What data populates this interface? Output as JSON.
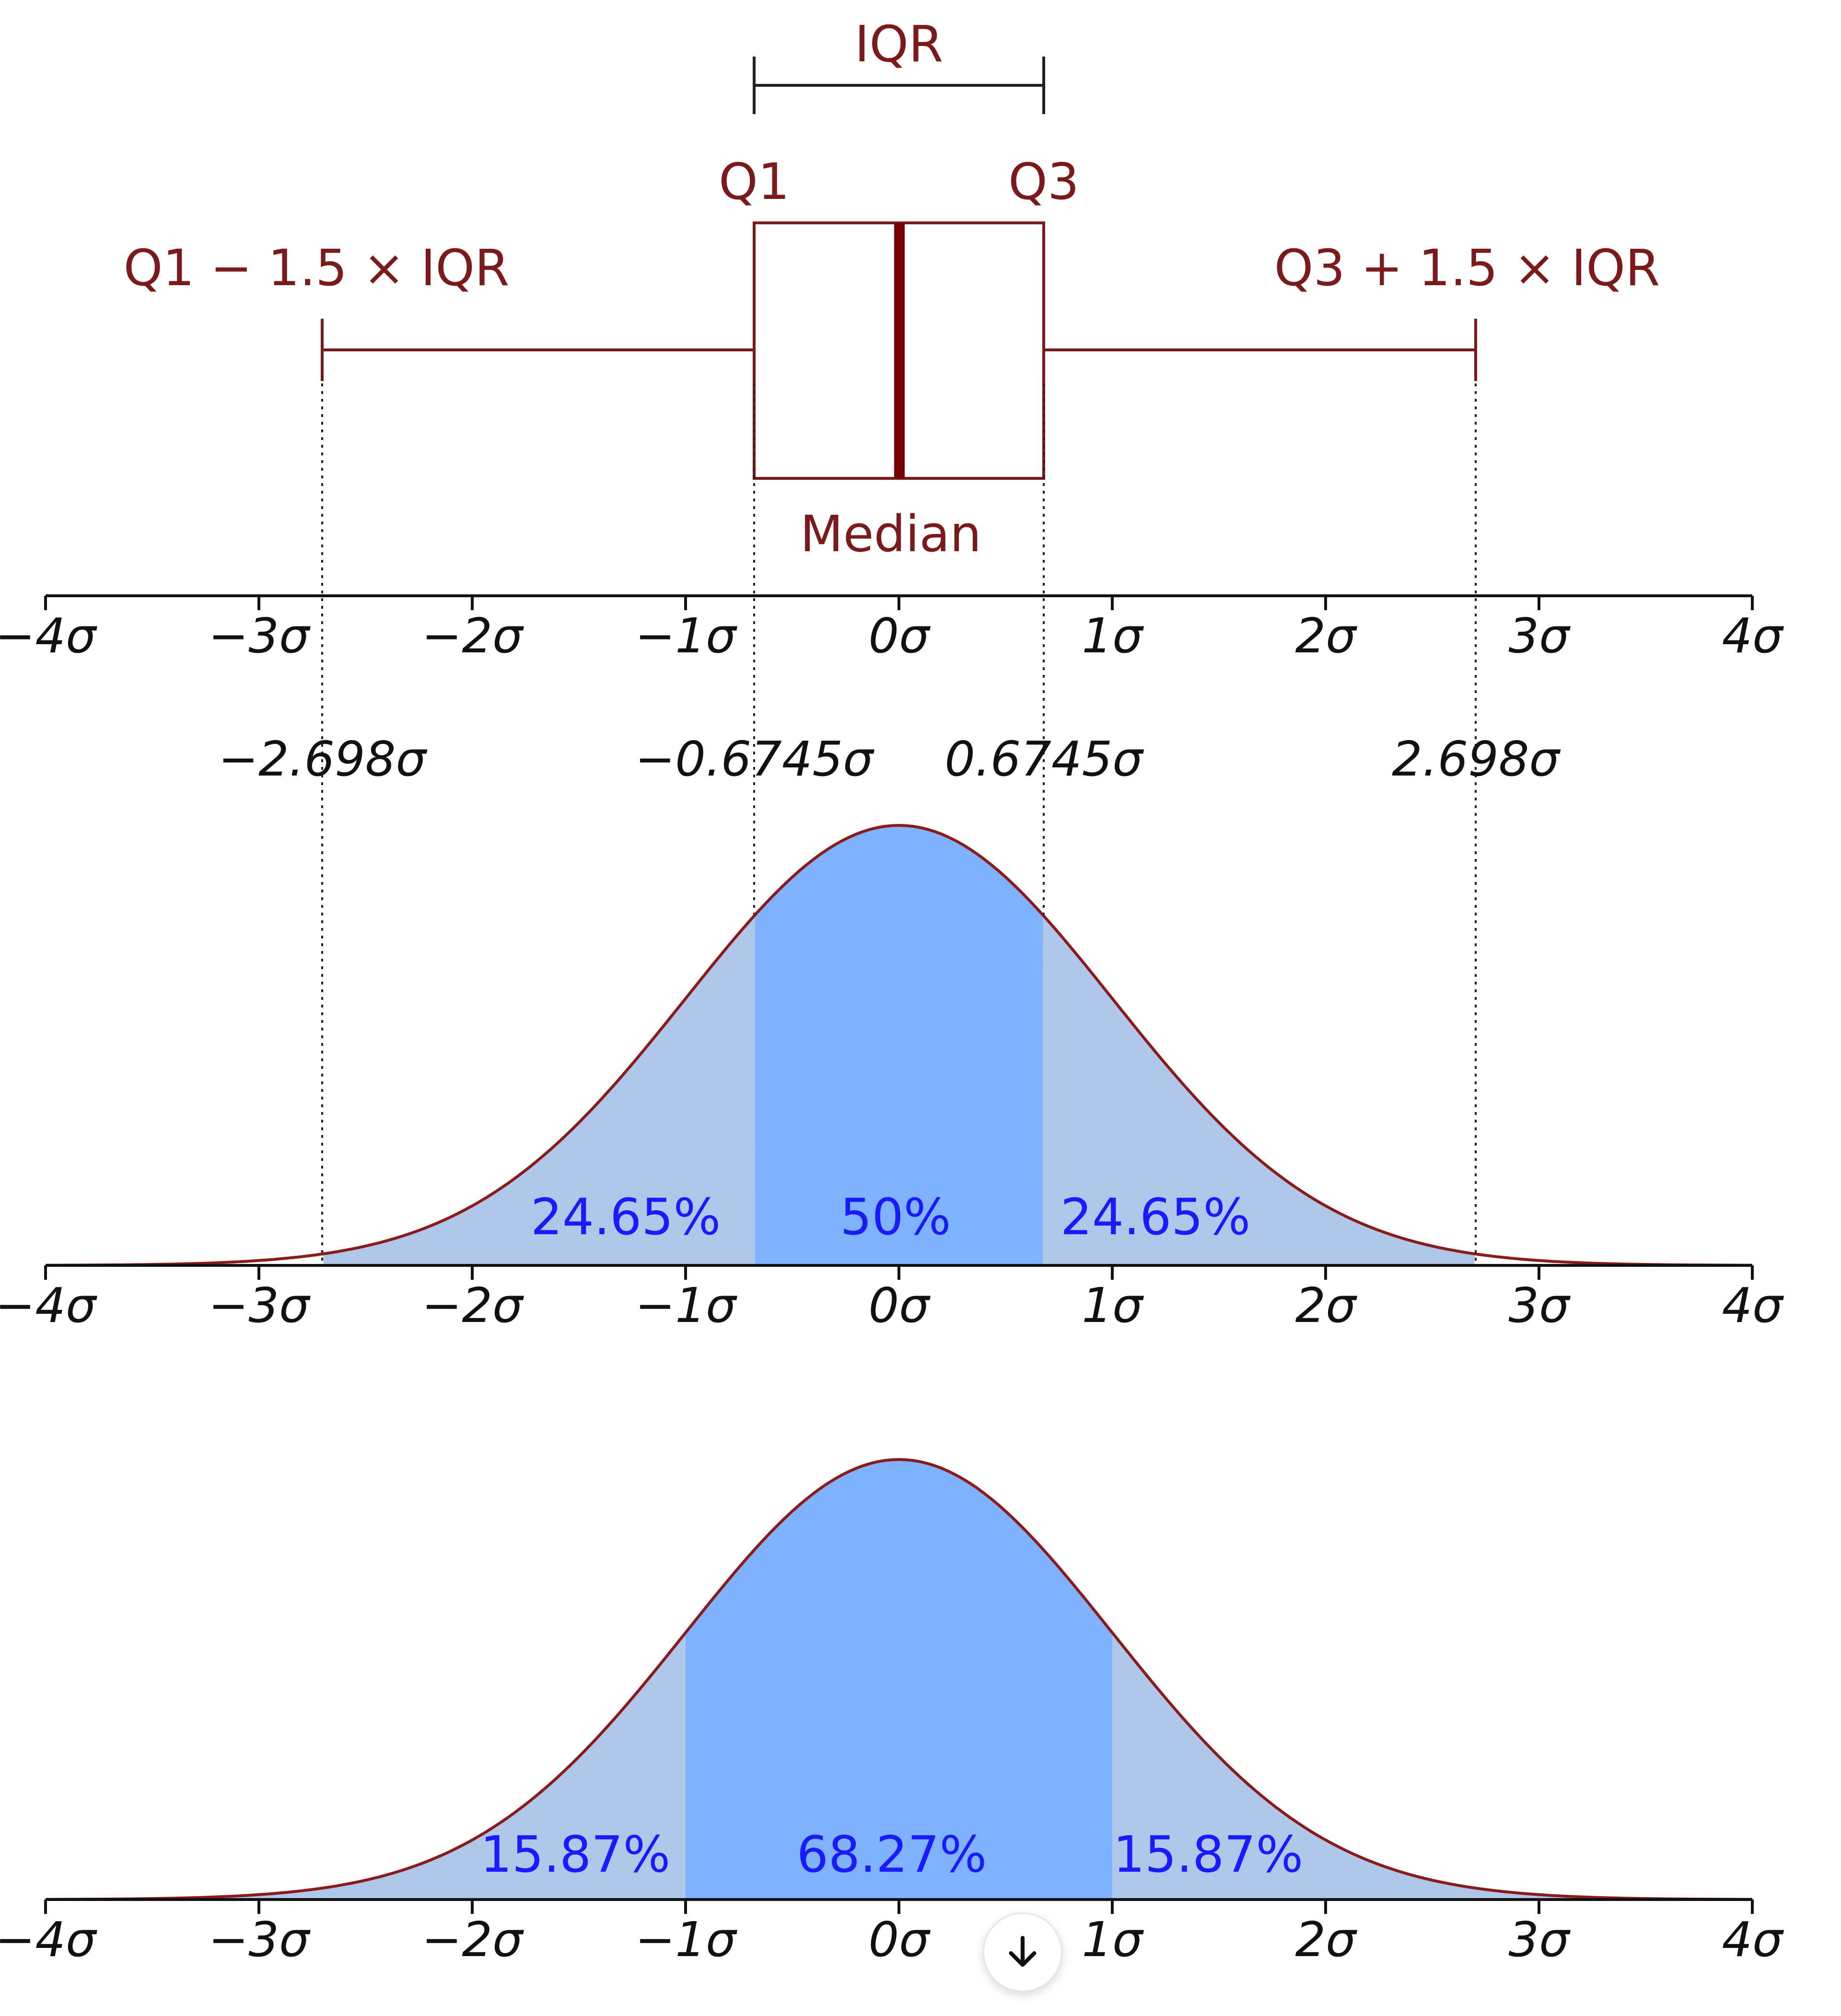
{
  "colors": {
    "box": "#7a1a1a",
    "median": "#7a0000",
    "curve": "#8b1a1a",
    "fill_outer": "#aec7ea",
    "fill_inner": "#80b1fd",
    "pct_text": "#1a1aff",
    "axis": "#111111"
  },
  "boxplot": {
    "iqr_label": "IQR",
    "q1_label": "Q1",
    "q3_label": "Q3",
    "lower_fence_label": "Q1 − 1.5 × IQR",
    "upper_fence_label": "Q3 + 1.5 × IQR",
    "median_label": "Median"
  },
  "axis_ticks": [
    "−4σ",
    "−3σ",
    "−2σ",
    "−1σ",
    "0σ",
    "1σ",
    "2σ",
    "3σ",
    "4σ"
  ],
  "quantile_labels": [
    "−2.698σ",
    "−0.6745σ",
    "0.6745σ",
    "2.698σ"
  ],
  "panel2": {
    "left_pct": "24.65%",
    "center_pct": "50%",
    "right_pct": "24.65%"
  },
  "panel3": {
    "left_pct": "15.87%",
    "center_pct": "68.27%",
    "right_pct": "15.87%"
  },
  "chart_data": {
    "type": "area",
    "x_range": [
      -4,
      4
    ],
    "quartiles_sigma": {
      "q1": -0.6745,
      "median": 0,
      "q3": 0.6745
    },
    "fences_sigma": {
      "lower": -2.698,
      "upper": 2.698
    },
    "panel2_regions": [
      {
        "from": -2.698,
        "to": -0.6745,
        "percent": 24.65
      },
      {
        "from": -0.6745,
        "to": 0.6745,
        "percent": 50
      },
      {
        "from": 0.6745,
        "to": 2.698,
        "percent": 24.65
      }
    ],
    "panel3_regions": [
      {
        "from": -4,
        "to": -1,
        "percent": 15.87
      },
      {
        "from": -1,
        "to": 1,
        "percent": 68.27
      },
      {
        "from": 1,
        "to": 4,
        "percent": 15.87
      }
    ]
  },
  "scroll_button": {
    "icon": "arrow-down-icon"
  }
}
